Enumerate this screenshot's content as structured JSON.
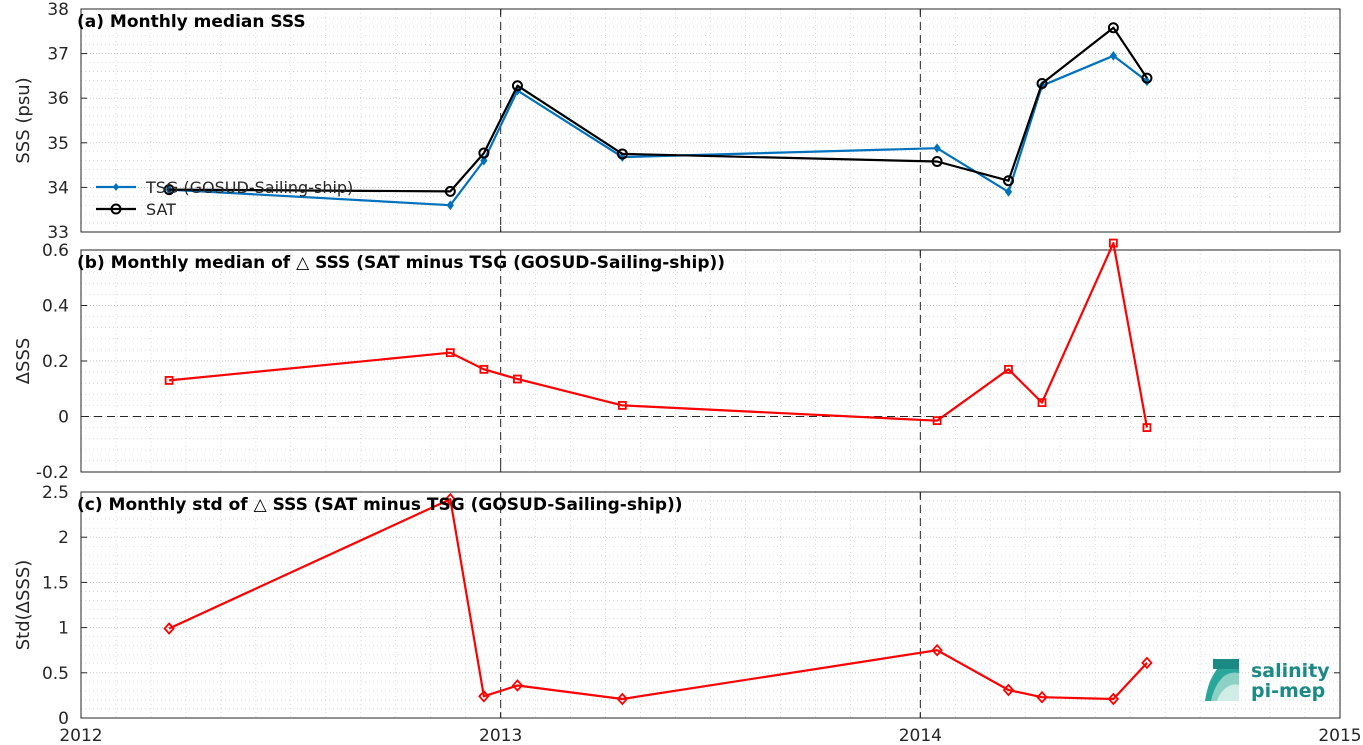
{
  "chart_data": [
    {
      "panel": "a",
      "type": "line",
      "title": "(a) Monthly median SSS",
      "ylabel": "SSS (psu)",
      "xlabel": "",
      "xlim": [
        2012,
        2015
      ],
      "ylim": [
        33,
        38
      ],
      "yticks": [
        33,
        34,
        35,
        36,
        37,
        38
      ],
      "grid": true,
      "legend_position": "left",
      "series": [
        {
          "name": "TSG (GOSUD-Sailing-ship)",
          "color": "#0072bd",
          "marker": "point",
          "x": [
            2012.21,
            2012.88,
            2012.96,
            2013.04,
            2013.29,
            2014.04,
            2014.21,
            2014.29,
            2014.46,
            2014.54
          ],
          "y": [
            33.95,
            33.6,
            34.6,
            36.17,
            34.68,
            34.88,
            33.9,
            36.28,
            36.95,
            36.38
          ]
        },
        {
          "name": "SAT",
          "color": "#000000",
          "marker": "circle",
          "x": [
            2012.21,
            2012.88,
            2012.96,
            2013.04,
            2013.29,
            2014.04,
            2014.21,
            2014.29,
            2014.46,
            2014.54
          ],
          "y": [
            33.95,
            33.91,
            34.77,
            36.28,
            34.75,
            34.58,
            34.15,
            36.33,
            37.58,
            36.45
          ]
        }
      ],
      "vlines": [
        2013,
        2014
      ]
    },
    {
      "panel": "b",
      "type": "line",
      "title": "(b) Monthly median of △ SSS (SAT minus TSG (GOSUD-Sailing-ship))",
      "ylabel": "ΔSSS",
      "xlabel": "",
      "xlim": [
        2012,
        2015
      ],
      "ylim": [
        -0.2,
        0.6
      ],
      "yticks": [
        -0.2,
        0,
        0.2,
        0.4,
        0.6
      ],
      "ytick_labels": [
        "-0.2",
        "0",
        "0.2",
        "0.4",
        "0.6"
      ],
      "grid": true,
      "series": [
        {
          "color": "#ff0000",
          "marker": "square",
          "x": [
            2012.21,
            2012.88,
            2012.96,
            2013.04,
            2013.29,
            2014.04,
            2014.21,
            2014.29,
            2014.46,
            2014.54
          ],
          "y": [
            0.13,
            0.23,
            0.17,
            0.135,
            0.04,
            -0.015,
            0.17,
            0.05,
            0.625,
            -0.04
          ]
        }
      ],
      "hlines": [
        0
      ],
      "vlines": [
        2013,
        2014
      ]
    },
    {
      "panel": "c",
      "type": "line",
      "title": "(c) Monthly std of △ SSS (SAT minus TSG (GOSUD-Sailing-ship))",
      "ylabel": "Std(ΔSSS)",
      "xlabel": "",
      "xlim": [
        2012,
        2015
      ],
      "ylim": [
        0,
        2.5
      ],
      "yticks": [
        0,
        0.5,
        1,
        1.5,
        2,
        2.5
      ],
      "ytick_labels": [
        "0",
        "0.5",
        "1",
        "1.5",
        "2",
        "2.5"
      ],
      "xticks": [
        2012,
        2013,
        2014,
        2015
      ],
      "xtick_labels": [
        "2012",
        "2013",
        "2014",
        "2015"
      ],
      "grid": true,
      "series": [
        {
          "color": "#ff0000",
          "marker": "diamond",
          "x": [
            2012.21,
            2012.88,
            2012.96,
            2013.04,
            2013.29,
            2014.04,
            2014.21,
            2014.29,
            2014.46,
            2014.54
          ],
          "y": [
            0.99,
            2.42,
            0.24,
            0.36,
            0.21,
            0.75,
            0.31,
            0.23,
            0.21,
            0.61
          ]
        }
      ],
      "vlines": [
        2013,
        2014
      ]
    }
  ],
  "logo": {
    "line1": "salinity",
    "line2": "pi-mep",
    "color": "#1c8a84"
  }
}
